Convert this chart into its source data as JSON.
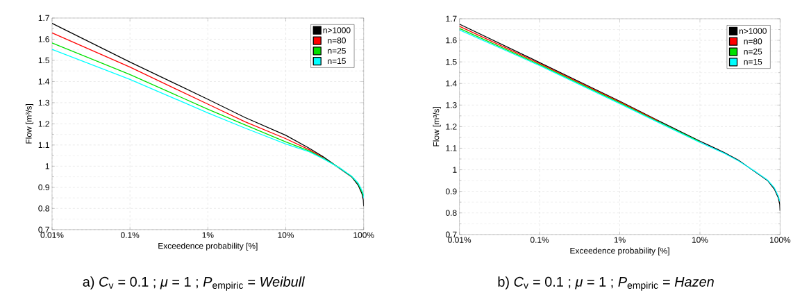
{
  "chart_data": [
    {
      "type": "line",
      "xlabel": "Exceedence probability [%]",
      "ylabel": "Flow [m³/s]",
      "annotations": [
        "a) *C*$_{v}$ = 0.1 ;  *μ* = 1 ;  *P*$_{empiric}$ = *Weibull*"
      ],
      "x": [
        0.01,
        0.1,
        1,
        3,
        10,
        20,
        30,
        50,
        70,
        85,
        95,
        99,
        100
      ],
      "log": "x",
      "xlim": [
        0.01,
        100
      ],
      "ylim": [
        0.7,
        1.7
      ],
      "xticks": [
        {
          "value": 0.01,
          "label": "0.01%"
        },
        {
          "value": 0.1,
          "label": "0.1%"
        },
        {
          "value": 1,
          "label": "1%"
        },
        {
          "value": 10,
          "label": "10%"
        },
        {
          "value": 100,
          "label": "100%"
        }
      ],
      "yticks": [
        0.7,
        0.8,
        0.9,
        1,
        1.1,
        1.2,
        1.3,
        1.4,
        1.5,
        1.6,
        1.7
      ],
      "grid": true,
      "legend": "top right",
      "marker": "none",
      "line_style": "solid",
      "series": [
        {
          "name": "n>1000",
          "color": "#000000",
          "values": [
            1.675,
            1.492,
            1.316,
            1.23,
            1.146,
            1.085,
            1.045,
            null,
            0.95,
            0.91,
            0.87,
            0.84,
            0.81
          ]
        },
        {
          "name": "n=80",
          "color": "#ff0000",
          "values": [
            1.63,
            1.468,
            1.293,
            1.21,
            1.13,
            1.078,
            1.04,
            null,
            null,
            null,
            null,
            null,
            null
          ]
        },
        {
          "name": "n=25",
          "color": "#00e000",
          "values": [
            1.582,
            1.433,
            1.269,
            1.195,
            1.115,
            1.072,
            1.038,
            0.99,
            0.952,
            0.918,
            0.88,
            0.86,
            null
          ]
        },
        {
          "name": "n=15",
          "color": "#00ffff",
          "values": [
            1.552,
            1.41,
            1.252,
            1.18,
            1.105,
            1.068,
            1.036,
            0.99,
            0.953,
            0.92,
            0.885,
            0.87,
            0.85
          ]
        }
      ]
    },
    {
      "type": "line",
      "xlabel": "Exceedence probability [%]",
      "ylabel": "Flow [m³/s]",
      "annotations": [
        "b) *C*$_{v}$ = 0.1 ;  *μ* = 1 ;  *P*$_{empiric}$ = *Hazen*"
      ],
      "x": [
        0.01,
        0.1,
        1,
        3,
        10,
        20,
        30,
        50,
        70,
        85,
        95,
        99,
        100
      ],
      "log": "x",
      "xlim": [
        0.01,
        100
      ],
      "ylim": [
        0.7,
        1.7
      ],
      "xticks": [
        {
          "value": 0.01,
          "label": "0.01%"
        },
        {
          "value": 0.1,
          "label": "0.1%"
        },
        {
          "value": 1,
          "label": "1%"
        },
        {
          "value": 10,
          "label": "10%"
        },
        {
          "value": 100,
          "label": "100%"
        }
      ],
      "yticks": [
        0.7,
        0.8,
        0.9,
        1,
        1.1,
        1.2,
        1.3,
        1.4,
        1.5,
        1.6,
        1.7
      ],
      "grid": true,
      "legend": "top right",
      "marker": "none",
      "line_style": "solid",
      "series": [
        {
          "name": "n>1000",
          "color": "#000000",
          "values": [
            1.675,
            1.497,
            1.318,
            1.228,
            1.133,
            1.08,
            1.045,
            null,
            0.95,
            0.91,
            0.87,
            0.84,
            0.81
          ]
        },
        {
          "name": "n=80",
          "color": "#ff0000",
          "values": [
            1.665,
            1.492,
            1.314,
            1.226,
            null,
            null,
            null,
            null,
            null,
            null,
            null,
            null,
            null
          ]
        },
        {
          "name": "n=25",
          "color": "#00e000",
          "values": [
            1.655,
            1.487,
            1.31,
            1.223,
            1.129,
            null,
            null,
            null,
            null,
            null,
            null,
            null,
            null
          ]
        },
        {
          "name": "n=15",
          "color": "#00ffff",
          "values": [
            1.648,
            1.483,
            1.306,
            1.22,
            1.127,
            1.077,
            1.042,
            0.99,
            0.952,
            0.916,
            0.878,
            0.855,
            null
          ]
        }
      ]
    }
  ]
}
